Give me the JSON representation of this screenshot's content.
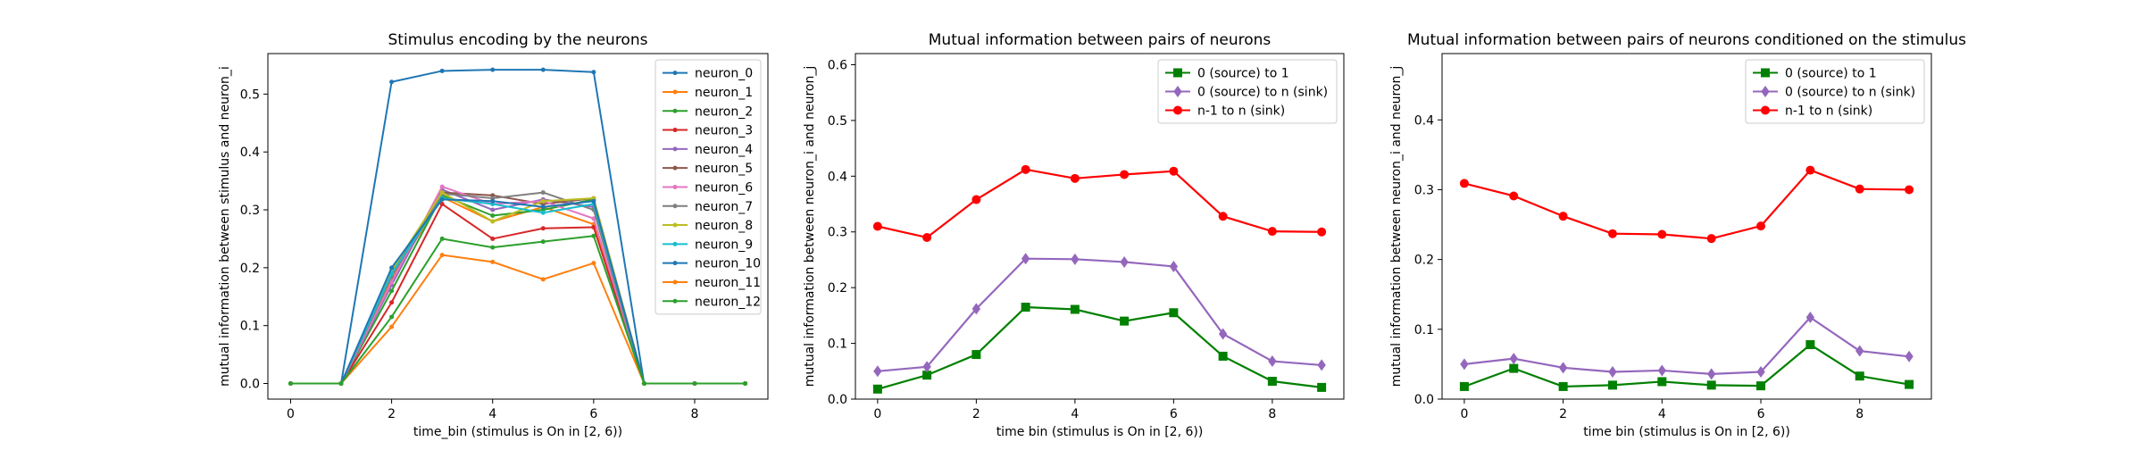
{
  "chart_data": [
    {
      "type": "line",
      "title": "Stimulus encoding by the neurons",
      "xlabel": "time_bin (stimulus is On in [2, 6))",
      "ylabel": "mutual information between stimulus and neuron_i",
      "xlim": [
        -0.45,
        9.45
      ],
      "ylim": [
        -0.027,
        0.57
      ],
      "xticks": [
        0,
        2,
        4,
        6,
        8
      ],
      "yticks": [
        0.0,
        0.1,
        0.2,
        0.3,
        0.4,
        0.5
      ],
      "ytick_labels": [
        "0.0",
        "0.1",
        "0.2",
        "0.3",
        "0.4",
        "0.5"
      ],
      "legend_position": "top-right",
      "x": [
        0,
        1,
        2,
        3,
        4,
        5,
        6,
        7,
        8,
        9
      ],
      "series": [
        {
          "name": "neuron_0",
          "color": "#1f77b4",
          "marker": "dot",
          "values": [
            0,
            0,
            0.521,
            0.54,
            0.542,
            0.542,
            0.538,
            0,
            0,
            0
          ]
        },
        {
          "name": "neuron_1",
          "color": "#ff7f0e",
          "marker": "dot",
          "values": [
            0,
            0,
            0.18,
            0.322,
            0.28,
            0.305,
            0.275,
            0,
            0,
            0
          ]
        },
        {
          "name": "neuron_2",
          "color": "#2ca02c",
          "marker": "dot",
          "values": [
            0,
            0,
            0.16,
            0.325,
            0.29,
            0.3,
            0.318,
            0,
            0,
            0
          ]
        },
        {
          "name": "neuron_3",
          "color": "#d62728",
          "marker": "dot",
          "values": [
            0,
            0,
            0.14,
            0.31,
            0.25,
            0.268,
            0.27,
            0,
            0,
            0
          ]
        },
        {
          "name": "neuron_4",
          "color": "#9467bd",
          "marker": "dot",
          "values": [
            0,
            0,
            0.17,
            0.335,
            0.3,
            0.318,
            0.305,
            0,
            0,
            0
          ]
        },
        {
          "name": "neuron_5",
          "color": "#8c564b",
          "marker": "dot",
          "values": [
            0,
            0,
            0.19,
            0.33,
            0.325,
            0.31,
            0.32,
            0,
            0,
            0
          ]
        },
        {
          "name": "neuron_6",
          "color": "#e377c2",
          "marker": "dot",
          "values": [
            0,
            0,
            0.175,
            0.34,
            0.31,
            0.315,
            0.285,
            0,
            0,
            0
          ]
        },
        {
          "name": "neuron_7",
          "color": "#7f7f7f",
          "marker": "dot",
          "values": [
            0,
            0,
            0.185,
            0.328,
            0.32,
            0.33,
            0.3,
            0,
            0,
            0
          ]
        },
        {
          "name": "neuron_8",
          "color": "#bcbd22",
          "marker": "dot",
          "values": [
            0,
            0,
            0.195,
            0.33,
            0.28,
            0.315,
            0.32,
            0,
            0,
            0
          ]
        },
        {
          "name": "neuron_9",
          "color": "#17becf",
          "marker": "dot",
          "values": [
            0,
            0,
            0.19,
            0.32,
            0.31,
            0.295,
            0.31,
            0,
            0,
            0
          ]
        },
        {
          "name": "neuron_10",
          "color": "#1f77b4",
          "marker": "dot",
          "values": [
            0,
            0,
            0.2,
            0.318,
            0.315,
            0.305,
            0.315,
            0,
            0,
            0
          ]
        },
        {
          "name": "neuron_11",
          "color": "#ff7f0e",
          "marker": "dot",
          "values": [
            0,
            0,
            0.098,
            0.222,
            0.21,
            0.18,
            0.208,
            0,
            0,
            0
          ]
        },
        {
          "name": "neuron_12",
          "color": "#2ca02c",
          "marker": "dot",
          "values": [
            0,
            0,
            0.115,
            0.25,
            0.235,
            0.245,
            0.255,
            0,
            0,
            0
          ]
        }
      ]
    },
    {
      "type": "line",
      "title": "Mutual information between pairs of neurons",
      "xlabel": "time bin (stimulus is On in [2, 6))",
      "ylabel": "mutual information between neuron_i and neuron_j",
      "xlim": [
        -0.45,
        9.45
      ],
      "ylim": [
        0,
        0.62
      ],
      "xticks": [
        0,
        2,
        4,
        6,
        8
      ],
      "yticks": [
        0.0,
        0.1,
        0.2,
        0.3,
        0.4,
        0.5,
        0.6
      ],
      "ytick_labels": [
        "0.0",
        "0.1",
        "0.2",
        "0.3",
        "0.4",
        "0.5",
        "0.6"
      ],
      "legend_position": "top-right",
      "x": [
        0,
        1,
        2,
        3,
        4,
        5,
        6,
        7,
        8,
        9
      ],
      "series": [
        {
          "name": "0 (source) to 1",
          "color": "#008000",
          "marker": "square",
          "values": [
            0.018,
            0.043,
            0.08,
            0.165,
            0.161,
            0.14,
            0.155,
            0.077,
            0.032,
            0.021
          ]
        },
        {
          "name": "0 (source) to n (sink)",
          "color": "#9467bd",
          "marker": "diamond",
          "values": [
            0.05,
            0.058,
            0.162,
            0.252,
            0.251,
            0.246,
            0.238,
            0.117,
            0.068,
            0.061
          ]
        },
        {
          "name": "n-1 to n (sink)",
          "color": "#ff0000",
          "marker": "circle",
          "values": [
            0.31,
            0.29,
            0.358,
            0.412,
            0.396,
            0.403,
            0.409,
            0.328,
            0.301,
            0.3
          ]
        }
      ]
    },
    {
      "type": "line",
      "title": "Mutual information between pairs of neurons conditioned on the stimulus",
      "xlabel": "time bin (stimulus is On in [2, 6))",
      "ylabel": "mutual information between neuron_i and neuron_j",
      "xlim": [
        -0.45,
        9.45
      ],
      "ylim": [
        0,
        0.495
      ],
      "xticks": [
        0,
        2,
        4,
        6,
        8
      ],
      "yticks": [
        0.0,
        0.1,
        0.2,
        0.3,
        0.4
      ],
      "ytick_labels": [
        "0.0",
        "0.1",
        "0.2",
        "0.3",
        "0.4"
      ],
      "legend_position": "top-right",
      "x": [
        0,
        1,
        2,
        3,
        4,
        5,
        6,
        7,
        8,
        9
      ],
      "series": [
        {
          "name": "0 (source) to 1",
          "color": "#008000",
          "marker": "square",
          "values": [
            0.018,
            0.044,
            0.018,
            0.02,
            0.025,
            0.02,
            0.019,
            0.078,
            0.033,
            0.021
          ]
        },
        {
          "name": "0 (source) to n (sink)",
          "color": "#9467bd",
          "marker": "diamond",
          "values": [
            0.05,
            0.058,
            0.045,
            0.039,
            0.041,
            0.036,
            0.039,
            0.117,
            0.069,
            0.061
          ]
        },
        {
          "name": "n-1 to n (sink)",
          "color": "#ff0000",
          "marker": "circle",
          "values": [
            0.309,
            0.291,
            0.262,
            0.237,
            0.236,
            0.23,
            0.248,
            0.328,
            0.301,
            0.3
          ]
        }
      ]
    }
  ]
}
